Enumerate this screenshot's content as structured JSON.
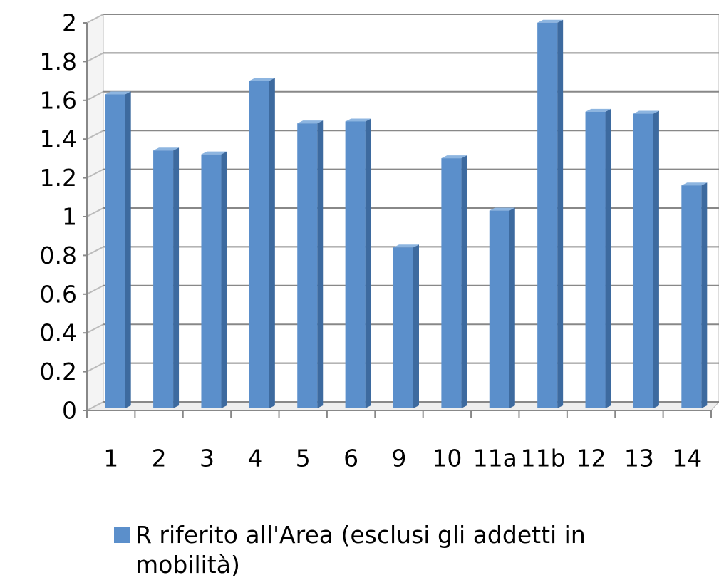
{
  "chart_data": {
    "type": "bar",
    "categories": [
      "1",
      "2",
      "3",
      "4",
      "5",
      "6",
      "9",
      "10",
      "11a",
      "11b",
      "12",
      "13",
      "14"
    ],
    "series": [
      {
        "name": "R riferito all'Area (esclusi gli addetti in mobilità)",
        "color": "#5b8fcb",
        "values": [
          1.62,
          1.33,
          1.31,
          1.69,
          1.47,
          1.48,
          0.83,
          1.29,
          1.02,
          1.99,
          1.53,
          1.52,
          1.15
        ]
      }
    ],
    "ylim": [
      0,
      2
    ],
    "yticks": [
      0,
      0.2,
      0.4,
      0.6,
      0.8,
      1,
      1.2,
      1.4,
      1.6,
      1.8,
      2
    ],
    "grid": true
  }
}
